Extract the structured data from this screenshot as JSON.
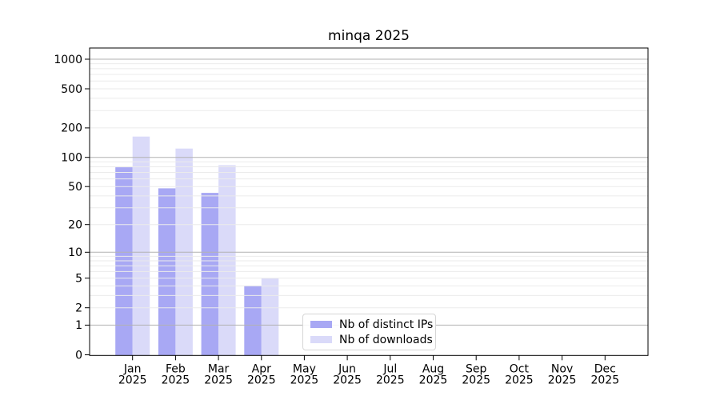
{
  "chart_data": {
    "type": "bar",
    "title": "minqa 2025",
    "categories": [
      "Jan",
      "Feb",
      "Mar",
      "Apr",
      "May",
      "Jun",
      "Jul",
      "Aug",
      "Sep",
      "Oct",
      "Nov",
      "Dec"
    ],
    "x_tick_second_line": "2025",
    "series": [
      {
        "name": "Nb of distinct IPs",
        "color": "#a8a8f4",
        "values": [
          79,
          48,
          43,
          4,
          0,
          0,
          0,
          0,
          0,
          0,
          0,
          0
        ]
      },
      {
        "name": "Nb of downloads",
        "color": "#dadaf9",
        "values": [
          163,
          123,
          83,
          5,
          0,
          0,
          0,
          0,
          0,
          0,
          0,
          0
        ]
      }
    ],
    "y_scale": "log(1+v)",
    "y_ticks": [
      0,
      1,
      2,
      5,
      10,
      20,
      50,
      100,
      200,
      500,
      1000
    ],
    "y_major_gridline_values": [
      1,
      10,
      100,
      1000
    ],
    "ylim": [
      0,
      1300
    ],
    "grid": "minor+major horizontal",
    "legend_position": "lower center inside plot",
    "colors": {
      "major_grid": "#b2b2b2",
      "minor_grid": "#ebebeb",
      "axis": "#000000",
      "background": "#ffffff"
    }
  }
}
